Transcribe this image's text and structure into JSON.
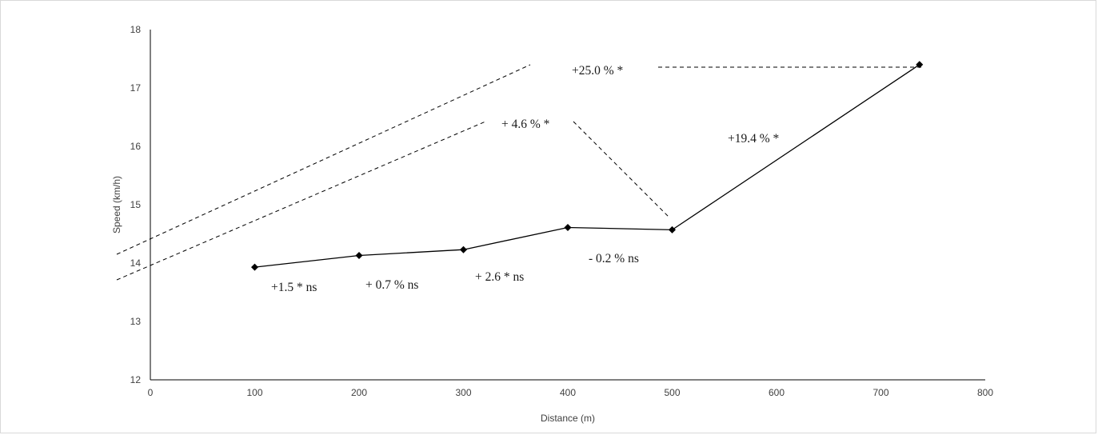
{
  "chart_data": {
    "type": "line",
    "title": "",
    "xlabel": "Distance (m)",
    "ylabel": "Speed (km/h)",
    "xlim": [
      0,
      800
    ],
    "ylim": [
      12,
      18
    ],
    "x_ticks": [
      "0",
      "100",
      "200",
      "300",
      "400",
      "500",
      "600",
      "700",
      "800"
    ],
    "y_ticks": [
      "12",
      "13",
      "14",
      "15",
      "16",
      "17",
      "18"
    ],
    "grid": false,
    "legend": "none",
    "series": [
      {
        "x": [
          100,
          200,
          300,
          400,
          500,
          737
        ],
        "values": [
          13.93,
          14.13,
          14.23,
          14.61,
          14.57,
          17.4
        ]
      }
    ],
    "annotations": [
      {
        "text": "+1.5 * ns"
      },
      {
        "text": "+ 0.7 % ns"
      },
      {
        "text": "+ 2.6 * ns"
      },
      {
        "text": "- 0.2 % ns"
      },
      {
        "text": "+19.4 % *"
      },
      {
        "text": "+ 4.6 % *"
      },
      {
        "text": "+25.0 % *"
      }
    ],
    "colors": {
      "line": "#000000",
      "axis": "#000000",
      "text": "#404040"
    }
  }
}
